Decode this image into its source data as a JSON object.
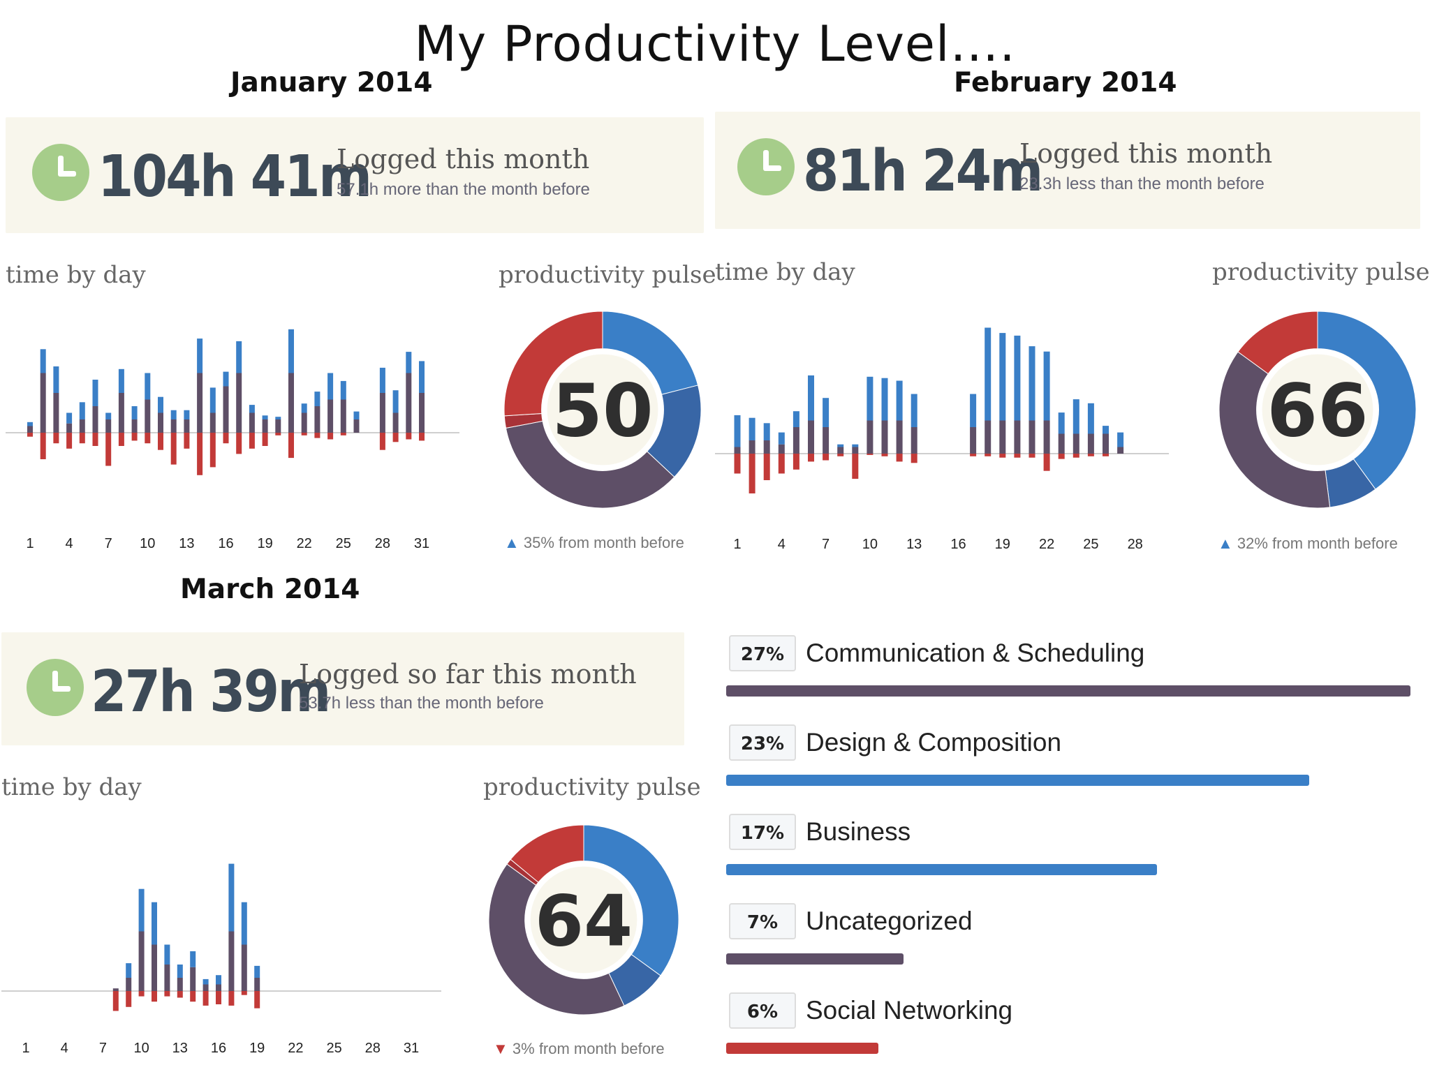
{
  "title": "My Productivity Level….",
  "colors": {
    "productive": "#3a7fc7",
    "very_productive": "#3866a6",
    "neutral": "#5e4f67",
    "distracting": "#c23a38",
    "very_distracting": "#a83237",
    "summary_bg": "#f8f6ec",
    "clock": "#a6cd8a"
  },
  "months": {
    "jan": {
      "month": "January 2014",
      "hours": "104h 41m",
      "logged_label": "Logged this month",
      "delta_text": "57.1h more than the month before",
      "time_by_day_label": "time by day",
      "pulse_label": "productivity pulse",
      "pulse_score": "50",
      "pulse_change": "35% from month before",
      "pulse_direction": "up"
    },
    "feb": {
      "month": "February 2014",
      "hours": "81h 24m",
      "logged_label": "Logged this month",
      "delta_text": "23.3h less than the month before",
      "time_by_day_label": "time by day",
      "pulse_label": "productivity pulse",
      "pulse_score": "66",
      "pulse_change": "32% from month before",
      "pulse_direction": "up"
    },
    "mar": {
      "month": "March 2014",
      "hours": "27h 39m",
      "logged_label": "Logged so far this month",
      "delta_text": "53.7h less than the month before",
      "time_by_day_label": "time by day",
      "pulse_label": "productivity pulse",
      "pulse_score": "64",
      "pulse_change": "3% from month before",
      "pulse_direction": "down"
    }
  },
  "categories": [
    {
      "pct": "27%",
      "name": "Communication & Scheduling",
      "value": 27,
      "color": "#5e4f67"
    },
    {
      "pct": "23%",
      "name": "Design & Composition",
      "value": 23,
      "color": "#3a7fc7"
    },
    {
      "pct": "17%",
      "name": "Business",
      "value": 17,
      "color": "#3a7fc7"
    },
    {
      "pct": "7%",
      "name": "Uncategorized",
      "value": 7,
      "color": "#5e4f67"
    },
    {
      "pct": "6%",
      "name": "Social Networking",
      "value": 6,
      "color": "#c23a38"
    }
  ],
  "chart_data": [
    {
      "type": "bar",
      "name": "time by day",
      "month": "January 2014",
      "x_tick_labels": [
        "1",
        "4",
        "7",
        "10",
        "13",
        "16",
        "19",
        "22",
        "25",
        "28",
        "31"
      ],
      "days": [
        1,
        2,
        3,
        4,
        5,
        6,
        7,
        8,
        9,
        10,
        11,
        12,
        13,
        14,
        15,
        16,
        17,
        18,
        19,
        20,
        21,
        22,
        23,
        24,
        25,
        26,
        27,
        28,
        29,
        30,
        31
      ],
      "series": [
        {
          "name": "neutral",
          "values": [
            0.5,
            4.5,
            3.0,
            0.7,
            1.0,
            2.0,
            1.0,
            3.0,
            1.0,
            2.5,
            1.5,
            1.0,
            1.0,
            4.5,
            1.5,
            3.5,
            4.5,
            1.5,
            1.0,
            1.0,
            4.5,
            1.5,
            2.0,
            2.5,
            2.5,
            1.0,
            0,
            3.0,
            1.5,
            4.5,
            3.0
          ]
        },
        {
          "name": "productive",
          "values": [
            0.3,
            1.8,
            2.0,
            0.8,
            1.3,
            2.0,
            0.5,
            1.8,
            1.0,
            2.0,
            1.2,
            0.7,
            0.7,
            2.6,
            1.9,
            1.1,
            2.4,
            0.6,
            0.3,
            0.2,
            3.3,
            0.7,
            1.1,
            2.0,
            1.4,
            0.6,
            0,
            1.9,
            1.7,
            1.6,
            2.4
          ]
        },
        {
          "name": "distracting",
          "values": [
            -0.3,
            -2.0,
            -0.8,
            -1.2,
            -0.8,
            -1.0,
            -2.5,
            -1.0,
            -0.6,
            -0.8,
            -1.3,
            -2.4,
            -1.2,
            -3.2,
            -2.6,
            -0.8,
            -1.6,
            -1.2,
            -1.0,
            -0.2,
            -1.9,
            -0.2,
            -0.4,
            -0.5,
            -0.2,
            0,
            0,
            -1.3,
            -0.7,
            -0.5,
            -0.6
          ]
        }
      ]
    },
    {
      "type": "bar",
      "name": "time by day",
      "month": "February 2014",
      "x_tick_labels": [
        "1",
        "4",
        "7",
        "10",
        "13",
        "16",
        "19",
        "22",
        "25",
        "28"
      ],
      "days": [
        1,
        2,
        3,
        4,
        5,
        6,
        7,
        8,
        9,
        10,
        11,
        12,
        13,
        14,
        15,
        16,
        17,
        18,
        19,
        20,
        21,
        22,
        23,
        24,
        25,
        26,
        27,
        28
      ],
      "series": [
        {
          "name": "neutral",
          "values": [
            0.5,
            1.0,
            1.0,
            0.7,
            2.0,
            2.5,
            2.0,
            0.5,
            0.5,
            2.5,
            2.5,
            2.5,
            2.0,
            0,
            0,
            0,
            2.0,
            2.5,
            2.5,
            2.5,
            2.5,
            2.5,
            1.5,
            1.5,
            1.5,
            1.5,
            0.5,
            0
          ]
        },
        {
          "name": "productive",
          "values": [
            2.4,
            1.7,
            1.3,
            0.9,
            1.2,
            3.4,
            2.2,
            0.2,
            0.2,
            3.3,
            3.2,
            3.0,
            2.5,
            0,
            0,
            0,
            2.5,
            7.0,
            6.6,
            6.4,
            5.6,
            5.2,
            1.6,
            2.6,
            2.3,
            0.6,
            1.1,
            0
          ]
        },
        {
          "name": "distracting",
          "values": [
            -1.5,
            -3.0,
            -2.0,
            -1.5,
            -1.2,
            -0.6,
            -0.5,
            -0.2,
            -1.9,
            -0.1,
            -0.2,
            -0.6,
            -0.7,
            0,
            0,
            0,
            -0.2,
            -0.2,
            -0.3,
            -0.3,
            -0.3,
            -1.3,
            -0.4,
            -0.3,
            -0.2,
            -0.2,
            0,
            0
          ]
        }
      ]
    },
    {
      "type": "bar",
      "name": "time by day",
      "month": "March 2014",
      "x_tick_labels": [
        "1",
        "4",
        "7",
        "10",
        "13",
        "16",
        "19",
        "22",
        "25",
        "28",
        "31"
      ],
      "days": [
        1,
        2,
        3,
        4,
        5,
        6,
        7,
        8,
        9,
        10,
        11,
        12,
        13,
        14,
        15,
        16,
        17,
        18,
        19,
        20,
        21,
        22,
        23,
        24,
        25,
        26,
        27,
        28,
        29,
        30,
        31
      ],
      "series": [
        {
          "name": "neutral",
          "values": [
            0,
            0,
            0,
            0,
            0,
            0,
            0,
            0.2,
            1.0,
            4.5,
            3.5,
            2.0,
            1.0,
            1.8,
            0.5,
            0.5,
            4.5,
            3.5,
            1.0,
            0,
            0,
            0,
            0,
            0,
            0,
            0,
            0,
            0,
            0,
            0,
            0
          ]
        },
        {
          "name": "productive",
          "values": [
            0,
            0,
            0,
            0,
            0,
            0,
            0,
            0,
            1.1,
            3.2,
            3.2,
            1.5,
            1.0,
            1.2,
            0.4,
            0.7,
            5.1,
            3.2,
            0.9,
            0,
            0,
            0,
            0,
            0,
            0,
            0,
            0,
            0,
            0,
            0,
            0
          ]
        },
        {
          "name": "distracting",
          "values": [
            0,
            0,
            0,
            0,
            0,
            0,
            0,
            -1.5,
            -1.2,
            -0.4,
            -0.8,
            -0.4,
            -0.5,
            -0.8,
            -1.1,
            -1.0,
            -1.1,
            -0.3,
            -1.3,
            0,
            0,
            0,
            0,
            0,
            0,
            0,
            0,
            0,
            0,
            0,
            0
          ]
        }
      ]
    },
    {
      "type": "pie",
      "name": "productivity pulse",
      "month": "January 2014",
      "center_label": "50",
      "slices": [
        {
          "name": "productive",
          "value": 21
        },
        {
          "name": "very productive",
          "value": 16
        },
        {
          "name": "neutral",
          "value": 35
        },
        {
          "name": "very distracting",
          "value": 2
        },
        {
          "name": "distracting",
          "value": 26
        }
      ]
    },
    {
      "type": "pie",
      "name": "productivity pulse",
      "month": "February 2014",
      "center_label": "66",
      "slices": [
        {
          "name": "productive",
          "value": 40
        },
        {
          "name": "very productive",
          "value": 8
        },
        {
          "name": "neutral",
          "value": 37
        },
        {
          "name": "distracting",
          "value": 15
        }
      ]
    },
    {
      "type": "pie",
      "name": "productivity pulse",
      "month": "March 2014",
      "center_label": "64",
      "slices": [
        {
          "name": "productive",
          "value": 35
        },
        {
          "name": "very productive",
          "value": 8
        },
        {
          "name": "neutral",
          "value": 42
        },
        {
          "name": "very distracting",
          "value": 1
        },
        {
          "name": "distracting",
          "value": 14
        }
      ]
    },
    {
      "type": "bar",
      "name": "category breakdown",
      "categories": [
        "Communication & Scheduling",
        "Design & Composition",
        "Business",
        "Uncategorized",
        "Social Networking"
      ],
      "values": [
        27,
        23,
        17,
        7,
        6
      ],
      "unit": "%"
    }
  ]
}
